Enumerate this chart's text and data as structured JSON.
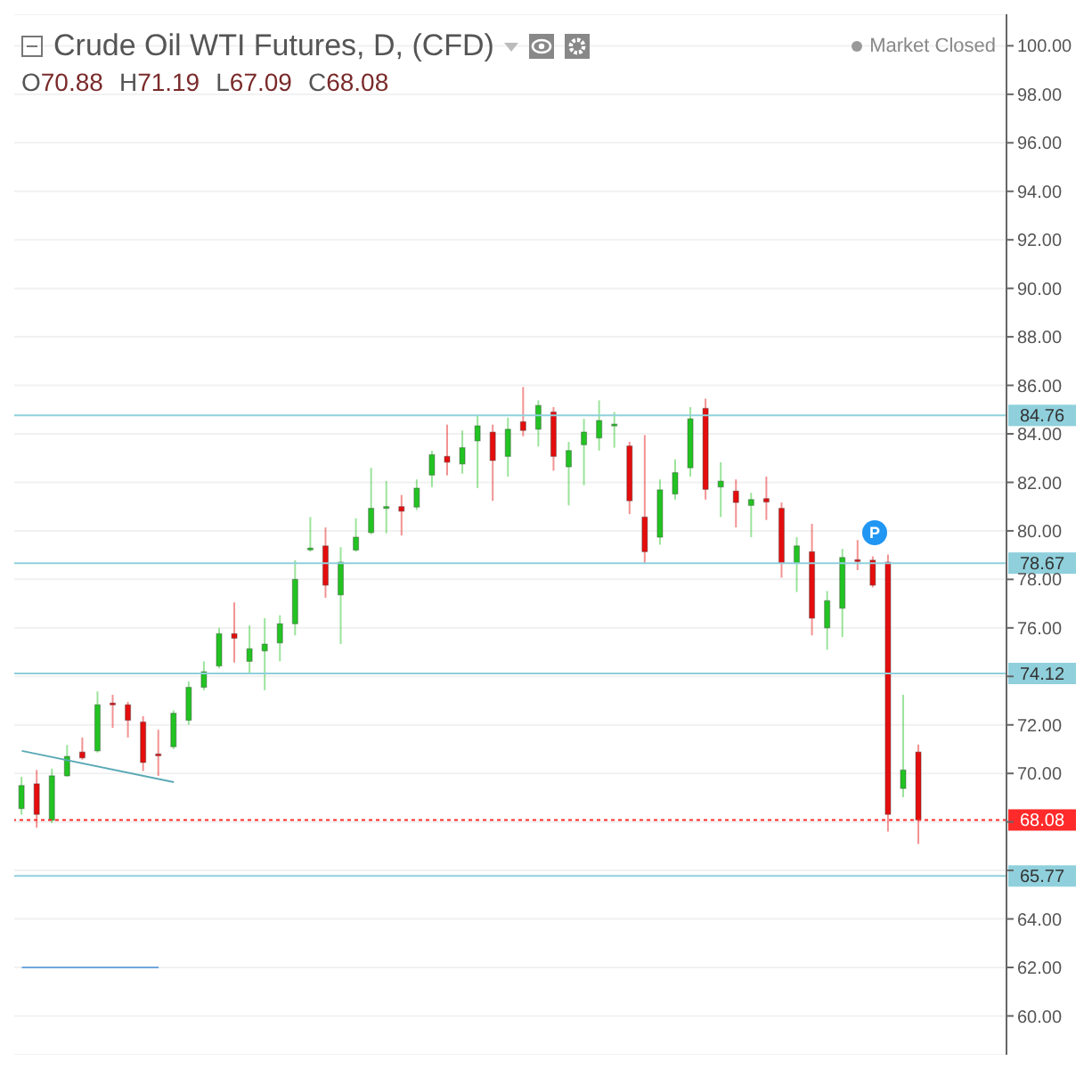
{
  "chart_data": {
    "type": "candlestick",
    "title": "Crude Oil WTI Futures, D, (CFD)",
    "annotations": [
      "Market Closed",
      "O70.88",
      "H71.19",
      "L67.09",
      "C68.08",
      "P"
    ],
    "categories": [
      null,
      null,
      null,
      null,
      null,
      null,
      null,
      null,
      null,
      null,
      null,
      null,
      null,
      null,
      null,
      null,
      null,
      null,
      null,
      null,
      null,
      null,
      null,
      null,
      null,
      null,
      null,
      null,
      null,
      null,
      null,
      null,
      null,
      null,
      null,
      null,
      null,
      null,
      null,
      null,
      null,
      null,
      null,
      null,
      null,
      null,
      null,
      null,
      null,
      null,
      null,
      null,
      null,
      null,
      null,
      null,
      null,
      null,
      null,
      null
    ],
    "ohlc": [
      [
        68.55,
        69.86,
        68.3,
        69.5
      ],
      [
        69.57,
        70.14,
        67.76,
        68.31
      ],
      [
        68.07,
        70.2,
        67.95,
        69.9
      ],
      [
        69.9,
        71.17,
        69.86,
        70.7
      ],
      [
        70.88,
        71.48,
        70.57,
        70.64
      ],
      [
        70.93,
        73.38,
        70.86,
        72.83
      ],
      [
        72.9,
        73.24,
        71.88,
        72.85
      ],
      [
        72.83,
        72.95,
        71.48,
        72.19
      ],
      [
        72.12,
        72.36,
        70.1,
        70.45
      ],
      [
        70.8,
        71.8,
        69.9,
        70.74
      ],
      [
        71.1,
        72.6,
        71.0,
        72.48
      ],
      [
        72.19,
        73.79,
        72.0,
        73.55
      ],
      [
        73.55,
        74.62,
        73.43,
        74.19
      ],
      [
        74.43,
        76.0,
        74.33,
        75.76
      ],
      [
        75.76,
        77.05,
        74.57,
        75.57
      ],
      [
        74.62,
        76.1,
        74.1,
        75.14
      ],
      [
        75.05,
        76.4,
        73.43,
        75.33
      ],
      [
        75.38,
        76.52,
        74.62,
        76.17
      ],
      [
        76.17,
        78.79,
        75.69,
        78.0
      ],
      [
        79.26,
        80.57,
        79.14,
        79.29
      ],
      [
        79.38,
        80.14,
        77.24,
        77.76
      ],
      [
        77.36,
        79.33,
        75.33,
        78.71
      ],
      [
        79.21,
        80.52,
        79.14,
        79.74
      ],
      [
        79.93,
        82.6,
        79.86,
        80.93
      ],
      [
        80.98,
        82.05,
        79.9,
        81.0
      ],
      [
        81.0,
        81.48,
        79.81,
        80.81
      ],
      [
        80.98,
        82.12,
        80.86,
        81.76
      ],
      [
        82.3,
        83.3,
        81.8,
        83.14
      ],
      [
        83.07,
        84.38,
        82.29,
        82.83
      ],
      [
        82.76,
        84.14,
        82.36,
        83.43
      ],
      [
        83.71,
        84.74,
        81.76,
        84.33
      ],
      [
        84.07,
        84.38,
        81.24,
        82.9
      ],
      [
        83.07,
        84.67,
        82.24,
        84.19
      ],
      [
        84.5,
        85.93,
        83.9,
        84.14
      ],
      [
        84.19,
        85.38,
        83.48,
        85.17
      ],
      [
        84.9,
        85.1,
        82.48,
        83.07
      ],
      [
        82.64,
        83.67,
        81.05,
        83.31
      ],
      [
        83.55,
        84.62,
        81.88,
        84.07
      ],
      [
        83.83,
        85.38,
        83.31,
        84.55
      ],
      [
        84.38,
        84.9,
        83.43,
        84.4
      ],
      [
        83.5,
        83.67,
        80.69,
        81.24
      ],
      [
        80.57,
        83.95,
        78.67,
        79.14
      ],
      [
        79.74,
        82.12,
        79.43,
        81.69
      ],
      [
        81.52,
        82.95,
        81.29,
        82.4
      ],
      [
        82.6,
        85.1,
        82.24,
        84.62
      ],
      [
        85.05,
        85.45,
        81.29,
        81.71
      ],
      [
        81.81,
        82.83,
        80.57,
        82.05
      ],
      [
        81.64,
        82.12,
        80.14,
        81.17
      ],
      [
        81.05,
        81.57,
        79.74,
        81.29
      ],
      [
        81.33,
        82.24,
        80.45,
        81.19
      ],
      [
        80.93,
        81.17,
        78.07,
        78.67
      ],
      [
        78.67,
        79.74,
        77.48,
        79.38
      ],
      [
        79.14,
        80.29,
        75.69,
        76.4
      ],
      [
        76.0,
        77.52,
        75.1,
        77.12
      ],
      [
        76.81,
        79.26,
        75.62,
        78.9
      ],
      [
        78.81,
        79.62,
        78.38,
        78.74
      ],
      [
        78.79,
        78.95,
        77.67,
        77.76
      ],
      [
        78.71,
        79.02,
        67.6,
        68.31
      ],
      [
        69.38,
        73.24,
        69.02,
        70.14
      ],
      [
        70.88,
        71.19,
        67.09,
        68.08
      ]
    ],
    "colors": [
      "#22c322",
      "#e50d0d",
      "#22c322",
      "#22c322",
      "#e50d0d",
      "#22c322",
      "#e50d0d",
      "#e50d0d",
      "#e50d0d",
      "#e50d0d",
      "#22c322",
      "#22c322",
      "#22c322",
      "#22c322",
      "#e50d0d",
      "#22c322",
      "#22c322",
      "#22c322",
      "#22c322",
      "#22c322",
      "#e50d0d",
      "#22c322",
      "#22c322",
      "#22c322",
      "#22c322",
      "#e50d0d",
      "#22c322",
      "#22c322",
      "#e50d0d",
      "#22c322",
      "#22c322",
      "#e50d0d",
      "#22c322",
      "#e50d0d",
      "#22c322",
      "#e50d0d",
      "#22c322",
      "#22c322",
      "#22c322",
      "#22c322",
      "#e50d0d",
      "#e50d0d",
      "#22c322",
      "#22c322",
      "#22c322",
      "#e50d0d",
      "#22c322",
      "#e50d0d",
      "#22c322",
      "#e50d0d",
      "#e50d0d",
      "#22c322",
      "#e50d0d",
      "#22c322",
      "#22c322",
      "#e50d0d",
      "#e50d0d",
      "#e50d0d",
      "#22c322",
      "#e50d0d"
    ],
    "series": [
      {
        "type": "line",
        "color": "#5aa9b5",
        "values": [
          70.93,
          null,
          null,
          null,
          null,
          null,
          null,
          null,
          null,
          null,
          69.64,
          null,
          null,
          null,
          null,
          null,
          null,
          null,
          null,
          null,
          null,
          null,
          null,
          null,
          null,
          null,
          null,
          null,
          null,
          null,
          null,
          null,
          null,
          null,
          null,
          null,
          null,
          null,
          null,
          null,
          null,
          null,
          null,
          null,
          null,
          null,
          null,
          null,
          null,
          null,
          null,
          null,
          null,
          null,
          null,
          null,
          null,
          null,
          null,
          null
        ]
      },
      {
        "type": "line",
        "color": "#6fa8dc",
        "values": [
          62.0,
          62.0,
          62.0,
          62.0,
          62.0,
          62.0,
          62.0,
          62.0,
          62.0,
          62.0,
          null,
          null,
          null,
          null,
          null,
          null,
          null,
          null,
          null,
          null,
          null,
          null,
          null,
          null,
          null,
          null,
          null,
          null,
          null,
          null,
          null,
          null,
          null,
          null,
          null,
          null,
          null,
          null,
          null,
          null,
          null,
          null,
          null,
          null,
          null,
          null,
          null,
          null,
          null,
          null,
          null,
          null,
          null,
          null,
          null,
          null,
          null,
          null,
          null,
          null
        ]
      }
    ],
    "ylim": [
      58.4,
      101.3
    ],
    "yticks": [
      {
        "value": 60,
        "label": "60.00"
      },
      {
        "value": 62,
        "label": "62.00"
      },
      {
        "value": 64,
        "label": "64.00"
      },
      {
        "value": 66,
        "label": null
      },
      {
        "value": 68,
        "label": null
      },
      {
        "value": 70,
        "label": "70.00"
      },
      {
        "value": 72,
        "label": "72.00"
      },
      {
        "value": 74,
        "label": null
      },
      {
        "value": 76,
        "label": "76.00"
      },
      {
        "value": 78,
        "label": "78.00"
      },
      {
        "value": 80,
        "label": "80.00"
      },
      {
        "value": 82,
        "label": "82.00"
      },
      {
        "value": 84,
        "label": "84.00"
      },
      {
        "value": 86,
        "label": "86.00"
      },
      {
        "value": 88,
        "label": "88.00"
      },
      {
        "value": 90,
        "label": "90.00"
      },
      {
        "value": 92,
        "label": "92.00"
      },
      {
        "value": 94,
        "label": "94.00"
      },
      {
        "value": 96,
        "label": "96.00"
      },
      {
        "value": 98,
        "label": "98.00"
      },
      {
        "value": 100,
        "label": "100.00"
      }
    ],
    "ref_lines": [
      {
        "axis": "y",
        "value": 84.76,
        "label": "84.76",
        "color": "#8fd0dc"
      },
      {
        "axis": "y",
        "value": 78.67,
        "label": "78.67",
        "color": "#8fd0dc"
      },
      {
        "axis": "y",
        "value": 74.12,
        "label": "74.12",
        "color": "#8fd0dc"
      },
      {
        "axis": "y",
        "value": 65.77,
        "label": "65.77",
        "color": "#8fd0dc"
      },
      {
        "axis": "y",
        "value": 68.08,
        "label": "68.08",
        "color": "#ff2a2a",
        "line_style": "dotted"
      }
    ],
    "grid": "y",
    "tick_labels": "y"
  }
}
